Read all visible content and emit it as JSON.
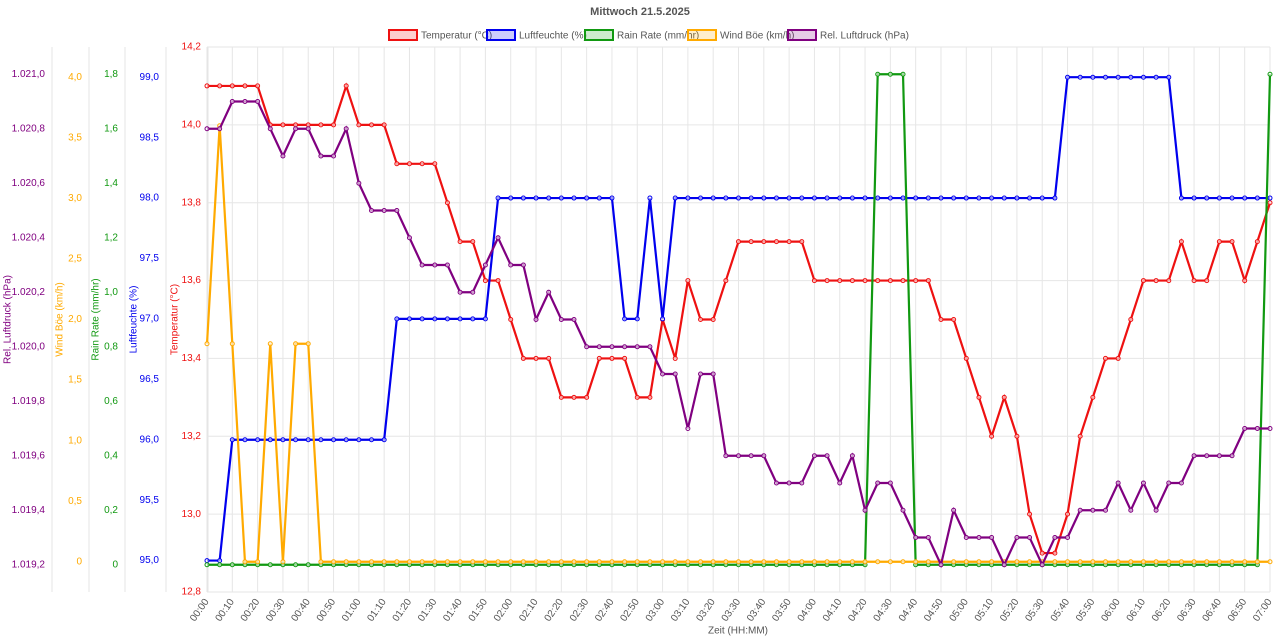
{
  "chart_data": {
    "type": "line",
    "title": "Mittwoch 21.5.2025",
    "x_label": "Zeit (HH:MM)",
    "grid": true,
    "legend": "top",
    "categories": [
      "00:00",
      null,
      "00:10",
      null,
      "00:20",
      null,
      "00:30",
      null,
      "00:40",
      null,
      "00:50",
      null,
      "01:00",
      null,
      "01:10",
      null,
      "01:20",
      null,
      "01:30",
      null,
      "01:40",
      null,
      "01:50",
      null,
      "02:00",
      null,
      "02:10",
      null,
      "02:20",
      null,
      "02:30",
      null,
      "02:40",
      null,
      "02:50",
      null,
      "03:00",
      null,
      "03:10",
      null,
      "03:20",
      null,
      "03:30",
      null,
      "03:40",
      null,
      "03:50",
      null,
      "04:00",
      null,
      "04:10",
      null,
      "04:20",
      null,
      "04:30",
      null,
      "04:40",
      null,
      "04:50",
      null,
      "05:00",
      null,
      "05:10",
      null,
      "05:20",
      null,
      "05:30",
      null,
      "05:40",
      null,
      "05:50",
      null,
      "06:00",
      null,
      "06:10",
      null,
      "06:20",
      null,
      "06:30",
      null,
      "06:40",
      null,
      "06:50",
      null,
      "07:00"
    ],
    "y_axes": [
      {
        "label": "Rel. Luftdruck (hPa)",
        "color": "#800080",
        "ylim": [
          1019.1,
          1021.1
        ],
        "yticks": [
          {
            "value": 1019.2,
            "label": "1.019,2"
          },
          {
            "value": 1019.4,
            "label": "1.019,4"
          },
          {
            "value": 1019.6,
            "label": "1.019,6"
          },
          {
            "value": 1019.8,
            "label": "1.019,8"
          },
          {
            "value": 1020.0,
            "label": "1.020,0"
          },
          {
            "value": 1020.2,
            "label": "1.020,2"
          },
          {
            "value": 1020.4,
            "label": "1.020,4"
          },
          {
            "value": 1020.6,
            "label": "1.020,6"
          },
          {
            "value": 1020.8,
            "label": "1.020,8"
          },
          {
            "value": 1021.0,
            "label": "1.021,0"
          }
        ]
      },
      {
        "label": "Wind Böe (km/h)",
        "color": "#ffaa00",
        "ylim": [
          -0.25,
          4.25
        ],
        "yticks": [
          0,
          {
            "value": 0.5,
            "label": "0,5"
          },
          {
            "value": 1,
            "label": "1,0"
          },
          {
            "value": 1.5,
            "label": "1,5"
          },
          {
            "value": 2,
            "label": "2,0"
          },
          {
            "value": 2.5,
            "label": "2,5"
          },
          {
            "value": 3,
            "label": "3,0"
          },
          {
            "value": 3.5,
            "label": "3,5"
          },
          {
            "value": 4,
            "label": "4,0"
          }
        ]
      },
      {
        "label": "Rain Rate (mm/hr)",
        "color": "#119911",
        "ylim": [
          -0.1,
          1.9
        ],
        "yticks": [
          0,
          {
            "value": 0.2,
            "label": "0,2"
          },
          {
            "value": 0.4,
            "label": "0,4"
          },
          {
            "value": 0.6,
            "label": "0,6"
          },
          {
            "value": 0.8,
            "label": "0,8"
          },
          {
            "value": 1.0,
            "label": "1,0"
          },
          {
            "value": 1.2,
            "label": "1,2"
          },
          {
            "value": 1.4,
            "label": "1,4"
          },
          {
            "value": 1.6,
            "label": "1,6"
          },
          {
            "value": 1.8,
            "label": "1,8"
          }
        ]
      },
      {
        "label": "Luftfeuchte (%)",
        "color": "#0000ee",
        "ylim": [
          94.74,
          99.25
        ],
        "yticks": [
          {
            "value": 95,
            "label": "95,0"
          },
          {
            "value": 95.5,
            "label": "95,5"
          },
          {
            "value": 96,
            "label": "96,0"
          },
          {
            "value": 96.5,
            "label": "96,5"
          },
          {
            "value": 97,
            "label": "97,0"
          },
          {
            "value": 97.5,
            "label": "97,5"
          },
          {
            "value": 98,
            "label": "98,0"
          },
          {
            "value": 98.5,
            "label": "98,5"
          },
          {
            "value": 99,
            "label": "99,0"
          }
        ]
      },
      {
        "label": "Temperatur (°C)",
        "color": "#ee1111",
        "ylim": [
          12.8,
          14.2
        ],
        "yticks": [
          {
            "value": 12.8,
            "label": "12,8"
          },
          {
            "value": 13.0,
            "label": "13,0"
          },
          {
            "value": 13.2,
            "label": "13,2"
          },
          {
            "value": 13.4,
            "label": "13,4"
          },
          {
            "value": 13.6,
            "label": "13,6"
          },
          {
            "value": 13.8,
            "label": "13,8"
          },
          {
            "value": 14.0,
            "label": "14,0"
          },
          {
            "value": 14.2,
            "label": "14,2"
          }
        ]
      }
    ],
    "series": [
      {
        "name": "Temperatur (°C)",
        "color": "#ee1111",
        "axis": 4,
        "values": [
          14.1,
          14.1,
          14.1,
          14.1,
          14.1,
          14.0,
          14.0,
          14.0,
          14.0,
          14.0,
          14.0,
          14.1,
          14.0,
          14.0,
          14.0,
          13.9,
          13.9,
          13.9,
          13.9,
          13.8,
          13.7,
          13.7,
          13.6,
          13.6,
          13.5,
          13.4,
          13.4,
          13.4,
          13.3,
          13.3,
          13.3,
          13.4,
          13.4,
          13.4,
          13.3,
          13.3,
          13.5,
          13.4,
          13.6,
          13.5,
          13.5,
          13.6,
          13.7,
          13.7,
          13.7,
          13.7,
          13.7,
          13.7,
          13.6,
          13.6,
          13.6,
          13.6,
          13.6,
          13.6,
          13.6,
          13.6,
          13.6,
          13.6,
          13.5,
          13.5,
          13.4,
          13.3,
          13.2,
          13.3,
          13.2,
          13.0,
          12.9,
          12.9,
          13.0,
          13.2,
          13.3,
          13.4,
          13.4,
          13.5,
          13.6,
          13.6,
          13.6,
          13.7,
          13.6,
          13.6,
          13.7,
          13.7,
          13.6,
          13.7,
          13.8
        ]
      },
      {
        "name": "Luftfeuchte (%)",
        "color": "#0000ee",
        "axis": 3,
        "values": [
          95,
          95,
          96,
          96,
          96,
          96,
          96,
          96,
          96,
          96,
          96,
          96,
          96,
          96,
          96,
          97,
          97,
          97,
          97,
          97,
          97,
          97,
          97,
          98,
          98,
          98,
          98,
          98,
          98,
          98,
          98,
          98,
          98,
          97,
          97,
          98,
          97,
          98,
          98,
          98,
          98,
          98,
          98,
          98,
          98,
          98,
          98,
          98,
          98,
          98,
          98,
          98,
          98,
          98,
          98,
          98,
          98,
          98,
          98,
          98,
          98,
          98,
          98,
          98,
          98,
          98,
          98,
          98,
          99,
          99,
          99,
          99,
          99,
          99,
          99,
          99,
          99,
          98,
          98,
          98,
          98,
          98,
          98,
          98,
          98
        ]
      },
      {
        "name": "Rain Rate (mm/hr)",
        "color": "#119911",
        "axis": 2,
        "values": [
          0,
          0,
          0,
          0,
          0,
          0,
          0,
          0,
          0,
          0,
          0,
          0,
          0,
          0,
          0,
          0,
          0,
          0,
          0,
          0,
          0,
          0,
          0,
          0,
          0,
          0,
          0,
          0,
          0,
          0,
          0,
          0,
          0,
          0,
          0,
          0,
          0,
          0,
          0,
          0,
          0,
          0,
          0,
          0,
          0,
          0,
          0,
          0,
          0,
          0,
          0,
          0,
          0,
          1.8,
          1.8,
          1.8,
          0,
          0,
          0,
          0,
          0,
          0,
          0,
          0,
          0,
          0,
          0,
          0,
          0,
          0,
          0,
          0,
          0,
          0,
          0,
          0,
          0,
          0,
          0,
          0,
          0,
          0,
          0,
          0,
          1.8
        ]
      },
      {
        "name": "Wind Böe (km/h)",
        "color": "#ffaa00",
        "axis": 1,
        "values": [
          1.8,
          3.6,
          1.8,
          0,
          0,
          1.8,
          0,
          1.8,
          1.8,
          0,
          0,
          0,
          0,
          0,
          0,
          0,
          0,
          0,
          0,
          0,
          0,
          0,
          0,
          0,
          0,
          0,
          0,
          0,
          0,
          0,
          0,
          0,
          0,
          0,
          0,
          0,
          0,
          0,
          0,
          0,
          0,
          0,
          0,
          0,
          0,
          0,
          0,
          0,
          0,
          0,
          0,
          0,
          0,
          0,
          0,
          0,
          0,
          0,
          0,
          0,
          0,
          0,
          0,
          0,
          0,
          0,
          0,
          0,
          0,
          0,
          0,
          0,
          0,
          0,
          0,
          0,
          0,
          0,
          0,
          0,
          0,
          0,
          0,
          0,
          0
        ]
      },
      {
        "name": "Rel. Luftdruck (hPa)",
        "color": "#800080",
        "axis": 0,
        "values": [
          1020.8,
          1020.8,
          1020.9,
          1020.9,
          1020.9,
          1020.8,
          1020.7,
          1020.8,
          1020.8,
          1020.7,
          1020.7,
          1020.8,
          1020.6,
          1020.5,
          1020.5,
          1020.5,
          1020.4,
          1020.3,
          1020.3,
          1020.3,
          1020.2,
          1020.2,
          1020.3,
          1020.4,
          1020.3,
          1020.3,
          1020.1,
          1020.2,
          1020.1,
          1020.1,
          1020.0,
          1020.0,
          1020.0,
          1020.0,
          1020.0,
          1020.0,
          1019.9,
          1019.9,
          1019.7,
          1019.9,
          1019.9,
          1019.6,
          1019.6,
          1019.6,
          1019.6,
          1019.5,
          1019.5,
          1019.5,
          1019.6,
          1019.6,
          1019.5,
          1019.6,
          1019.4,
          1019.5,
          1019.5,
          1019.4,
          1019.3,
          1019.3,
          1019.2,
          1019.4,
          1019.3,
          1019.3,
          1019.3,
          1019.2,
          1019.3,
          1019.3,
          1019.2,
          1019.3,
          1019.3,
          1019.4,
          1019.4,
          1019.4,
          1019.5,
          1019.4,
          1019.5,
          1019.4,
          1019.5,
          1019.5,
          1019.6,
          1019.6,
          1019.6,
          1019.6,
          1019.7,
          1019.7,
          1019.7
        ]
      }
    ]
  }
}
